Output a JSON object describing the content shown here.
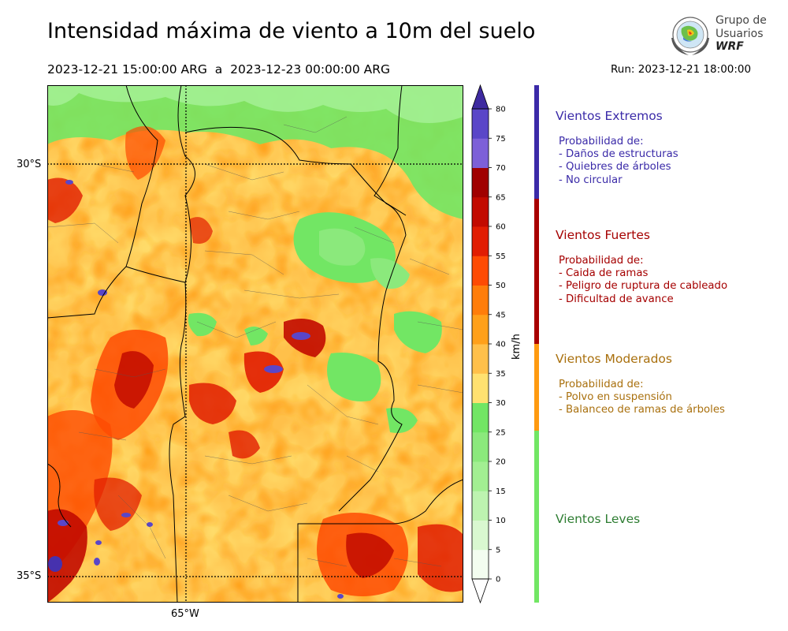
{
  "header": {
    "title": "Intensidad máxima de viento a 10m del suelo",
    "period": "2023-12-21 15:00:00 ARG  a  2023-12-23 00:00:00 ARG",
    "run": "Run: 2023-12-21 18:00:00"
  },
  "logo": {
    "line1": "Grupo de",
    "line2": "Usuarios",
    "line3": "WRF"
  },
  "map": {
    "lat_labels": [
      "30°S",
      "35°S"
    ],
    "lon_labels": [
      "65°W"
    ]
  },
  "colorbar": {
    "unit": "km/h",
    "ticks": [
      "0",
      "5",
      "10",
      "15",
      "20",
      "25",
      "30",
      "35",
      "40",
      "45",
      "50",
      "55",
      "60",
      "65",
      "70",
      "75",
      "80"
    ],
    "colors": [
      "#f3fdf0",
      "#d9f8d0",
      "#bdf3b0",
      "#a2ef92",
      "#8be97c",
      "#72e664",
      "#ffe170",
      "#ffc04a",
      "#ffa01a",
      "#ff7d0a",
      "#fe4b03",
      "#e11d02",
      "#c20a00",
      "#a00000",
      "#7d60d8",
      "#5a46c8",
      "#4631ae"
    ],
    "max_arrow_color": "#3e2aa0",
    "min_arrow_color": "#ffffff"
  },
  "categories": [
    {
      "title": "Vientos Extremos",
      "color": "#3a2aa8",
      "bar_color": "#3b2aa8",
      "lines": [
        "Probabilidad de:",
        "- Daños de estructuras",
        "- Quiebres de árboles",
        "- No circular"
      ]
    },
    {
      "title": "Vientos Fuertes",
      "color": "#a50000",
      "bar_color": "#a80000",
      "lines": [
        "Probabilidad de:",
        "- Caida de ramas",
        "- Peligro de ruptura de cableado",
        "- Dificultad de avance"
      ]
    },
    {
      "title": "Vientos Moderados",
      "color": "#a9700e",
      "bar_color": "#ff9a10",
      "lines": [
        "Probabilidad de:",
        "- Polvo en suspensión",
        "- Balanceo de ramas de árboles"
      ]
    },
    {
      "title": "Vientos Leves",
      "color": "#2e7d32",
      "bar_color": "#72e664",
      "lines": []
    }
  ]
}
